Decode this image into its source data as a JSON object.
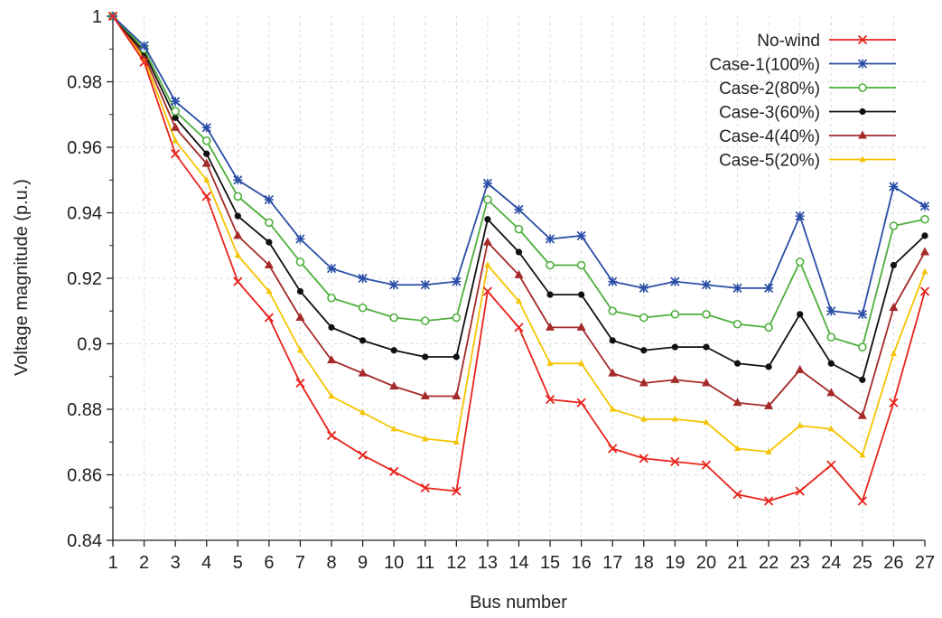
{
  "chart_data": {
    "type": "line",
    "xlabel": "Bus number",
    "ylabel": "Voltage magnitude (p.u.)",
    "x": [
      1,
      2,
      3,
      4,
      5,
      6,
      7,
      8,
      9,
      10,
      11,
      12,
      13,
      14,
      15,
      16,
      17,
      18,
      19,
      20,
      21,
      22,
      23,
      24,
      25,
      26,
      27
    ],
    "xlim": [
      1,
      27
    ],
    "ylim": [
      0.84,
      1.0
    ],
    "yticks": [
      0.84,
      0.86,
      0.88,
      0.9,
      0.92,
      0.94,
      0.96,
      0.98,
      1
    ],
    "ytick_labels": [
      "0.84",
      "0.86",
      "0.88",
      "0.9",
      "0.92",
      "0.94",
      "0.96",
      "0.98",
      "1"
    ],
    "xtick_labels": [
      "1",
      "2",
      "3",
      "4",
      "5",
      "6",
      "7",
      "8",
      "9",
      "10",
      "11",
      "12",
      "13",
      "14",
      "15",
      "16",
      "17",
      "18",
      "19",
      "20",
      "21",
      "22",
      "23",
      "24",
      "25",
      "26",
      "27"
    ],
    "grid": true,
    "legend_position": "top-right",
    "series": [
      {
        "name": "No-wind",
        "color": "#e8231b",
        "marker": "x",
        "values": [
          1.0,
          0.986,
          0.958,
          0.945,
          0.919,
          0.908,
          0.888,
          0.872,
          0.866,
          0.861,
          0.856,
          0.855,
          0.916,
          0.905,
          0.883,
          0.882,
          0.868,
          0.865,
          0.864,
          0.863,
          0.854,
          0.852,
          0.855,
          0.863,
          0.852,
          0.882,
          0.916
        ]
      },
      {
        "name": "Case-1(100%)",
        "color": "#2a4ea5",
        "marker": "asterisk",
        "values": [
          1.0,
          0.991,
          0.974,
          0.966,
          0.95,
          0.944,
          0.932,
          0.923,
          0.92,
          0.918,
          0.918,
          0.919,
          0.949,
          0.941,
          0.932,
          0.933,
          0.919,
          0.917,
          0.919,
          0.918,
          0.917,
          0.917,
          0.939,
          0.91,
          0.909,
          0.948,
          0.942
        ]
      },
      {
        "name": "Case-2(80%)",
        "color": "#4daf3b",
        "marker": "open-circle",
        "values": [
          1.0,
          0.99,
          0.971,
          0.962,
          0.945,
          0.937,
          0.925,
          0.914,
          0.911,
          0.908,
          0.907,
          0.908,
          0.944,
          0.935,
          0.924,
          0.924,
          0.91,
          0.908,
          0.909,
          0.909,
          0.906,
          0.905,
          0.925,
          0.902,
          0.899,
          0.936,
          0.938
        ]
      },
      {
        "name": "Case-3(60%)",
        "color": "#111111",
        "marker": "filled-circle",
        "values": [
          1.0,
          0.989,
          0.969,
          0.958,
          0.939,
          0.931,
          0.916,
          0.905,
          0.901,
          0.898,
          0.896,
          0.896,
          0.938,
          0.928,
          0.915,
          0.915,
          0.901,
          0.898,
          0.899,
          0.899,
          0.894,
          0.893,
          0.909,
          0.894,
          0.889,
          0.924,
          0.933
        ]
      },
      {
        "name": "Case-4(40%)",
        "color": "#a52a2a",
        "marker": "triangle",
        "values": [
          1.0,
          0.988,
          0.966,
          0.955,
          0.933,
          0.924,
          0.908,
          0.895,
          0.891,
          0.887,
          0.884,
          0.884,
          0.931,
          0.921,
          0.905,
          0.905,
          0.891,
          0.888,
          0.889,
          0.888,
          0.882,
          0.881,
          0.892,
          0.885,
          0.878,
          0.911,
          0.928
        ]
      },
      {
        "name": "Case-5(20%)",
        "color": "#f5c400",
        "marker": "small-triangle",
        "values": [
          1.0,
          0.987,
          0.962,
          0.95,
          0.927,
          0.916,
          0.898,
          0.884,
          0.879,
          0.874,
          0.871,
          0.87,
          0.924,
          0.913,
          0.894,
          0.894,
          0.88,
          0.877,
          0.877,
          0.876,
          0.868,
          0.867,
          0.875,
          0.874,
          0.866,
          0.897,
          0.922
        ]
      }
    ]
  }
}
